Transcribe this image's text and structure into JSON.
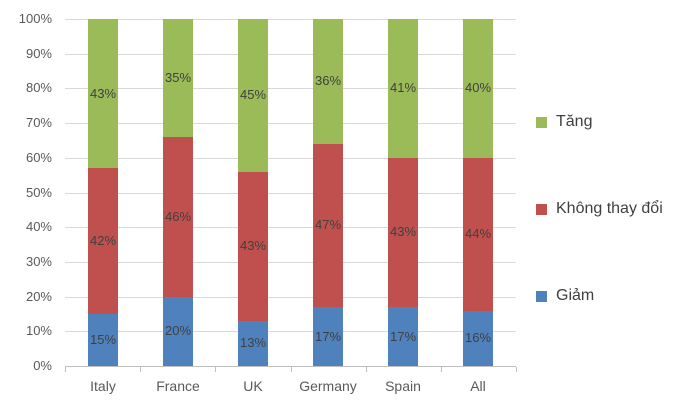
{
  "chart_data": {
    "type": "bar",
    "variant": "stacked-100-percent",
    "title": "",
    "xlabel": "",
    "ylabel": "",
    "categories": [
      "Italy",
      "France",
      "UK",
      "Germany",
      "Spain",
      "All"
    ],
    "series": [
      {
        "name": "Giảm",
        "color": "#4f81bd",
        "values": [
          15,
          20,
          13,
          17,
          17,
          16
        ]
      },
      {
        "name": "Không thay đổi",
        "color": "#c0504d",
        "values": [
          42,
          46,
          43,
          47,
          43,
          44
        ]
      },
      {
        "name": "Tăng",
        "color": "#9bbb59",
        "values": [
          43,
          35,
          45,
          36,
          41,
          40
        ]
      }
    ],
    "data_label_format": "percent",
    "y_axis": {
      "min": 0,
      "max": 100,
      "step": 10,
      "tick_labels": [
        "0%",
        "10%",
        "20%",
        "30%",
        "40%",
        "50%",
        "60%",
        "70%",
        "80%",
        "90%",
        "100%"
      ]
    },
    "grid": "horizontal",
    "legend": {
      "position": "right",
      "items": [
        {
          "label": "Tăng",
          "color": "#9bbb59"
        },
        {
          "label": "Không thay đổi",
          "color": "#c0504d"
        },
        {
          "label": "Giảm",
          "color": "#4f81bd"
        }
      ]
    }
  }
}
